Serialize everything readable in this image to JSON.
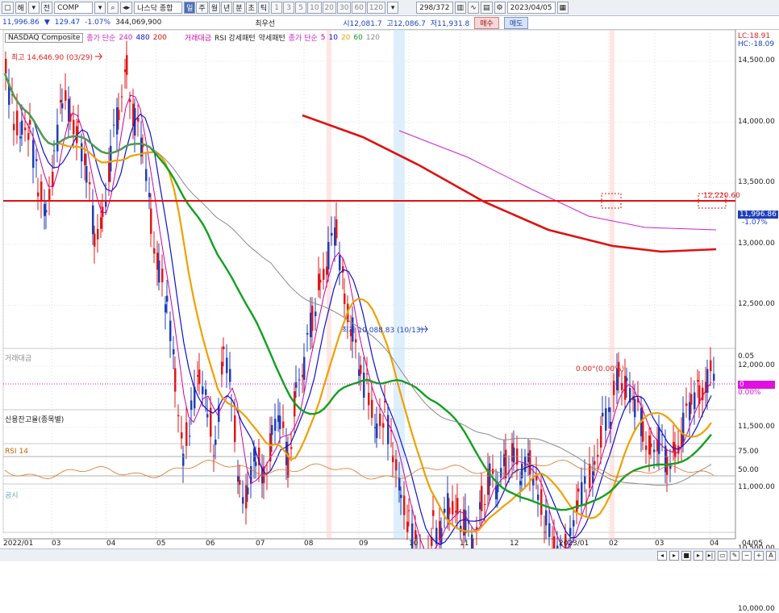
{
  "toolbar": {
    "mode1": "해",
    "mode2": "전",
    "symbol": "COMP",
    "market_name": "나스닥 종합",
    "periods": [
      "일",
      "주",
      "월",
      "년",
      "분",
      "초",
      "틱"
    ],
    "active_period": "일",
    "intervals": [
      "1",
      "3",
      "5",
      "10",
      "20",
      "30",
      "60",
      "120"
    ],
    "count": "298",
    "total": "372",
    "date": "2023/04/05"
  },
  "info": {
    "price": "11,996.86",
    "change": "129.47",
    "change_pct": "-1.07%",
    "volume": "344,069,900",
    "preferred": "최우선",
    "open": "시12,081.7",
    "high": "고12,086.7",
    "low": "저11,931.8",
    "buy": "매수",
    "sell": "매도"
  },
  "legend": {
    "name": "NASDAQ Composite",
    "ma_long_label": "종가 단순",
    "ma_long_periods": [
      "240",
      "480",
      "200"
    ],
    "vol_label": "거래대금",
    "rsi_label": "RSI 강세패턴",
    "weak_label": "약세패턴",
    "ma_short_label": "종가 단순",
    "ma_short_periods": [
      "5",
      "10",
      "20",
      "60",
      "120"
    ],
    "lc": "LC:18.91",
    "hc": "HC:-18.09"
  },
  "annotations": {
    "high": "최고 14,646.90 (03/29)",
    "low": "최저 10,088.83 (10/13)",
    "level": "12,220.60",
    "last_price": "11,996.86",
    "last_pct": "-1.07%"
  },
  "colors": {
    "up": "#e01818",
    "down": "#1f3fb8",
    "ma5": "#d000a0",
    "ma10": "#1010d0",
    "ma20": "#f0a000",
    "ma60": "#10a020",
    "ma120": "#8a8a8a",
    "ma200": "#e01010",
    "ma240": "#d020d0"
  },
  "panes": {
    "volume": {
      "label": "거래대금",
      "scale": "0.05",
      "value": "0.00°(0.00%)",
      "badge": "0",
      "badge_pct": "0.00%"
    },
    "credit": {
      "label": "신용잔고율(종목별)"
    },
    "rsi": {
      "label": "RSI 14",
      "upper": "75.00",
      "mid": "50.00"
    },
    "notice": {
      "label": "공시"
    }
  },
  "chart_data": {
    "type": "candlestick",
    "price_axis": [
      "14,500.00",
      "14,000.00",
      "13,500.00",
      "13,000.00",
      "12,500.00",
      "12,000.00",
      "11,500.00",
      "11,000.00",
      "10,500.00",
      "10,000.00"
    ],
    "x_ticks": [
      "2022/01",
      "03",
      "04",
      "05",
      "06",
      "07",
      "08",
      "09",
      "10",
      "11",
      "12",
      "2023/01",
      "02",
      "03",
      "04",
      "04/05"
    ],
    "close_path": [
      [
        0,
        14400
      ],
      [
        10,
        14050
      ],
      [
        20,
        13950
      ],
      [
        30,
        13900
      ],
      [
        40,
        13500
      ],
      [
        50,
        13300
      ],
      [
        60,
        13650
      ],
      [
        70,
        14200
      ],
      [
        80,
        14100
      ],
      [
        90,
        13900
      ],
      [
        100,
        13600
      ],
      [
        110,
        13100
      ],
      [
        120,
        13200
      ],
      [
        130,
        13700
      ],
      [
        140,
        14100
      ],
      [
        150,
        14450
      ],
      [
        160,
        14000
      ],
      [
        170,
        13800
      ],
      [
        180,
        13200
      ],
      [
        190,
        12800
      ],
      [
        200,
        12500
      ],
      [
        210,
        11900
      ],
      [
        220,
        11300
      ],
      [
        230,
        11600
      ],
      [
        240,
        11900
      ],
      [
        250,
        11700
      ],
      [
        260,
        11300
      ],
      [
        270,
        12100
      ],
      [
        280,
        11800
      ],
      [
        290,
        11000
      ],
      [
        300,
        10900
      ],
      [
        310,
        11300
      ],
      [
        320,
        11100
      ],
      [
        330,
        11400
      ],
      [
        340,
        11600
      ],
      [
        350,
        11200
      ],
      [
        360,
        11800
      ],
      [
        370,
        12000
      ],
      [
        380,
        12400
      ],
      [
        390,
        12700
      ],
      [
        400,
        12900
      ],
      [
        410,
        13100
      ],
      [
        420,
        12600
      ],
      [
        430,
        12300
      ],
      [
        440,
        11900
      ],
      [
        450,
        11800
      ],
      [
        460,
        11500
      ],
      [
        470,
        11600
      ],
      [
        480,
        11300
      ],
      [
        490,
        11000
      ],
      [
        500,
        10700
      ],
      [
        510,
        10500
      ],
      [
        520,
        10300
      ],
      [
        530,
        10700
      ],
      [
        540,
        10600
      ],
      [
        550,
        10900
      ],
      [
        560,
        10800
      ],
      [
        570,
        10700
      ],
      [
        580,
        10500
      ],
      [
        590,
        10900
      ],
      [
        600,
        11100
      ],
      [
        610,
        11000
      ],
      [
        620,
        11200
      ],
      [
        630,
        11300
      ],
      [
        640,
        11100
      ],
      [
        650,
        11200
      ],
      [
        660,
        11000
      ],
      [
        670,
        10700
      ],
      [
        680,
        10500
      ],
      [
        690,
        10450
      ],
      [
        700,
        10600
      ],
      [
        710,
        10900
      ],
      [
        720,
        11000
      ],
      [
        730,
        11200
      ],
      [
        740,
        11500
      ],
      [
        750,
        11600
      ],
      [
        760,
        12000
      ],
      [
        770,
        11800
      ],
      [
        780,
        11700
      ],
      [
        790,
        11500
      ],
      [
        800,
        11300
      ],
      [
        810,
        11400
      ],
      [
        820,
        11200
      ],
      [
        830,
        11300
      ],
      [
        840,
        11500
      ],
      [
        850,
        11700
      ],
      [
        860,
        11800
      ],
      [
        870,
        11900
      ],
      [
        880,
        11997
      ]
    ]
  }
}
